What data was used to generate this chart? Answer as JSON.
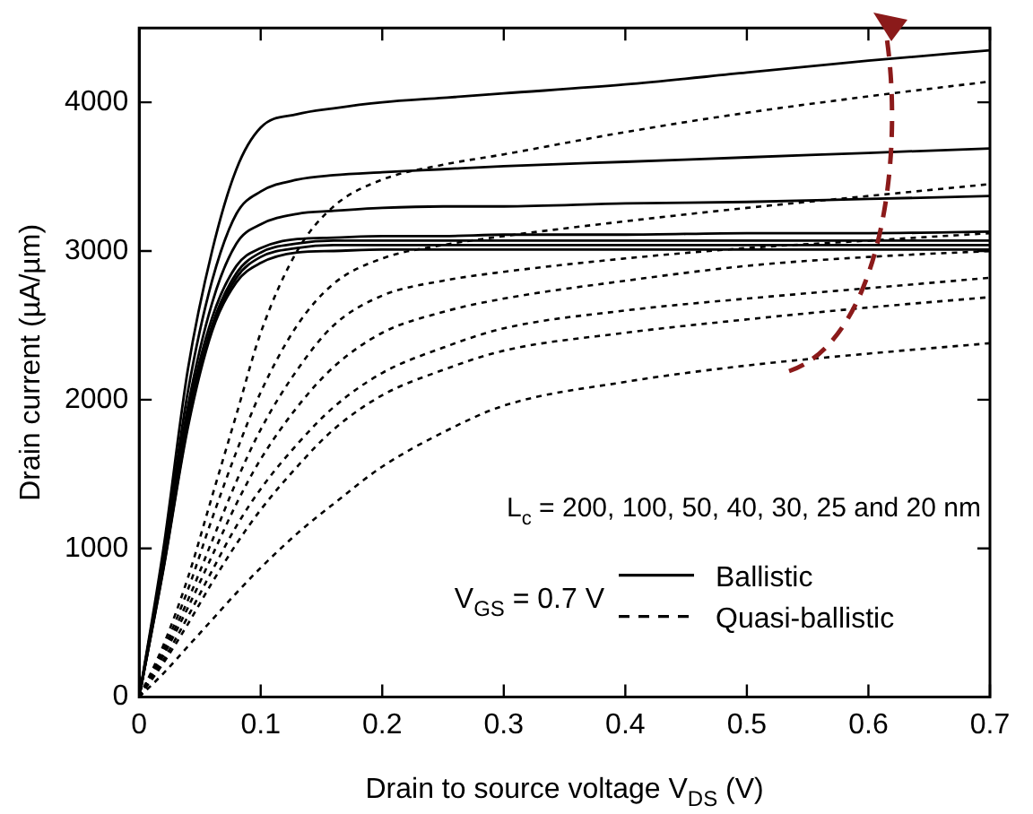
{
  "chart_data": {
    "type": "line",
    "xlabel": "Drain to source voltage V$_{DS}$ (V)",
    "ylabel": "Drain current (µA/µm)",
    "annotations": [
      "L$_{c}$ = 200, 100, 50, 40, 30, 25 and 20 nm",
      "V$_{GS}$ = 0.7 V"
    ],
    "x": [
      0,
      0.02,
      0.04,
      0.06,
      0.08,
      0.1,
      0.13,
      0.16,
      0.2,
      0.25,
      0.3,
      0.4,
      0.5,
      0.6,
      0.7
    ],
    "xlim": [
      0,
      0.7
    ],
    "xticks": [
      0,
      0.1,
      0.2,
      0.3,
      0.4,
      0.5,
      0.6,
      0.7
    ],
    "ylim": [
      0,
      4500
    ],
    "yticks": [
      0,
      1000,
      2000,
      3000,
      4000
    ],
    "grid": false,
    "legend": "bottom right",
    "marker": "none",
    "series": [
      {
        "name": "Ballistic",
        "color": "#000000",
        "line_style": "solid",
        "values": [
          0,
          1000,
          2200,
          3000,
          3550,
          3830,
          3920,
          3960,
          4000,
          4030,
          4060,
          4120,
          4200,
          4280,
          4350
        ]
      },
      {
        "color": "#000000",
        "line_style": "solid",
        "values": [
          0,
          950,
          2050,
          2800,
          3250,
          3400,
          3480,
          3510,
          3530,
          3550,
          3570,
          3600,
          3630,
          3660,
          3690
        ]
      },
      {
        "color": "#000000",
        "line_style": "solid",
        "values": [
          0,
          930,
          1950,
          2650,
          3050,
          3180,
          3250,
          3270,
          3290,
          3300,
          3300,
          3320,
          3330,
          3350,
          3370
        ]
      },
      {
        "color": "#000000",
        "line_style": "solid",
        "values": [
          0,
          900,
          1900,
          2550,
          2900,
          3020,
          3080,
          3090,
          3100,
          3100,
          3110,
          3110,
          3120,
          3120,
          3130
        ]
      },
      {
        "color": "#000000",
        "line_style": "solid",
        "values": [
          0,
          880,
          1850,
          2500,
          2850,
          2990,
          3050,
          3070,
          3070,
          3070,
          3070,
          3070,
          3070,
          3070,
          3070
        ]
      },
      {
        "color": "#000000",
        "line_style": "solid",
        "values": [
          0,
          870,
          1830,
          2480,
          2820,
          2960,
          3020,
          3040,
          3040,
          3040,
          3040,
          3040,
          3040,
          3040,
          3040
        ]
      },
      {
        "color": "#000000",
        "line_style": "solid",
        "values": [
          0,
          860,
          1810,
          2460,
          2790,
          2920,
          2990,
          3000,
          3010,
          3010,
          3010,
          3010,
          3010,
          3010,
          3010
        ]
      },
      {
        "name": "Quasi-ballistic",
        "color": "#000000",
        "line_style": "dashed",
        "values": [
          0,
          350,
          800,
          1350,
          1900,
          2450,
          3000,
          3300,
          3480,
          3580,
          3650,
          3800,
          3930,
          4040,
          4140
        ]
      },
      {
        "color": "#000000",
        "line_style": "dashed",
        "values": [
          0,
          320,
          720,
          1200,
          1650,
          2050,
          2500,
          2780,
          2950,
          3040,
          3100,
          3200,
          3290,
          3370,
          3450
        ]
      },
      {
        "color": "#000000",
        "line_style": "dashed",
        "values": [
          0,
          300,
          650,
          1050,
          1450,
          1800,
          2200,
          2500,
          2700,
          2800,
          2860,
          2950,
          3020,
          3070,
          3120
        ]
      },
      {
        "color": "#000000",
        "line_style": "dashed",
        "values": [
          0,
          280,
          600,
          950,
          1300,
          1600,
          1950,
          2220,
          2450,
          2590,
          2680,
          2800,
          2900,
          2960,
          3000
        ]
      },
      {
        "color": "#000000",
        "line_style": "dashed",
        "values": [
          0,
          250,
          540,
          850,
          1150,
          1400,
          1700,
          1950,
          2180,
          2350,
          2480,
          2600,
          2680,
          2750,
          2820
        ]
      },
      {
        "color": "#000000",
        "line_style": "dashed",
        "values": [
          0,
          230,
          490,
          770,
          1030,
          1260,
          1550,
          1800,
          2030,
          2200,
          2330,
          2450,
          2540,
          2620,
          2690
        ]
      },
      {
        "color": "#000000",
        "line_style": "dashed",
        "values": [
          0,
          160,
          340,
          520,
          700,
          870,
          1100,
          1300,
          1550,
          1780,
          1960,
          2120,
          2230,
          2310,
          2380
        ]
      }
    ]
  }
}
